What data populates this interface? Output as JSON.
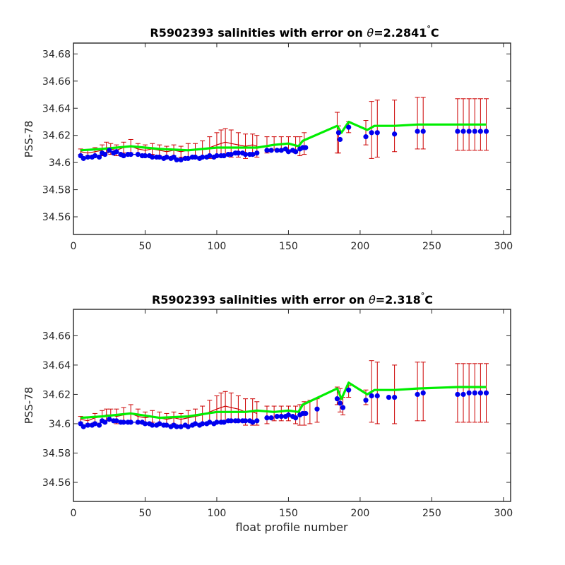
{
  "colors": {
    "errorbar": "#cc0000",
    "mapped": "#00ee00",
    "float": "#0000ee",
    "axis": "#262626"
  },
  "chart_data": [
    {
      "type": "scatter",
      "title_main": "R5902393 salinities with error on ",
      "title_theta": "θ",
      "title_value": "=2.2841",
      "title_unit": "C",
      "title_degree": "°",
      "xlabel": "",
      "ylabel": "PSS-78",
      "xlim": [
        0,
        305
      ],
      "ylim": [
        34.547,
        34.688
      ],
      "xticks": [
        0,
        50,
        100,
        150,
        200,
        250,
        300
      ],
      "xtick_labels": [
        "0",
        "50",
        "100",
        "150",
        "200",
        "250",
        "300"
      ],
      "yticks": [
        34.56,
        34.58,
        34.6,
        34.62,
        34.64,
        34.66,
        34.68
      ],
      "ytick_labels": [
        "34.56",
        "34.58",
        "34.6",
        "34.62",
        "34.64",
        "34.66",
        "34.68"
      ],
      "grid": false,
      "errorbar_series": {
        "x": [
          5,
          10,
          15,
          20,
          23,
          26,
          30,
          35,
          40,
          45,
          50,
          55,
          60,
          65,
          70,
          75,
          80,
          85,
          90,
          95,
          100,
          103,
          106,
          110,
          115,
          120,
          125,
          128,
          135,
          140,
          145,
          150,
          155,
          158,
          161,
          184,
          185,
          192,
          204,
          208,
          212,
          224,
          240,
          244,
          268,
          272,
          276,
          280,
          284,
          288
        ],
        "y": [
          34.608,
          34.607,
          34.608,
          34.609,
          34.611,
          34.61,
          34.609,
          34.611,
          34.612,
          34.61,
          34.609,
          34.61,
          34.609,
          34.608,
          34.609,
          34.608,
          34.609,
          34.609,
          34.61,
          34.611,
          34.613,
          34.614,
          34.615,
          34.614,
          34.613,
          34.612,
          34.613,
          34.612,
          34.613,
          34.614,
          34.614,
          34.614,
          34.613,
          34.612,
          34.614,
          34.622,
          34.617,
          34.626,
          34.622,
          34.624,
          34.625,
          34.627,
          34.629,
          34.629,
          34.628,
          34.628,
          34.628,
          34.628,
          34.628,
          34.628
        ],
        "err": [
          0.002,
          0.002,
          0.003,
          0.004,
          0.004,
          0.004,
          0.004,
          0.004,
          0.005,
          0.004,
          0.004,
          0.004,
          0.004,
          0.004,
          0.004,
          0.004,
          0.005,
          0.005,
          0.006,
          0.008,
          0.009,
          0.01,
          0.01,
          0.01,
          0.009,
          0.009,
          0.008,
          0.008,
          0.006,
          0.005,
          0.005,
          0.005,
          0.006,
          0.007,
          0.008,
          0.015,
          0.01,
          0.004,
          0.009,
          0.021,
          0.021,
          0.019,
          0.019,
          0.019,
          0.019,
          0.019,
          0.019,
          0.019,
          0.019,
          0.019
        ]
      },
      "mapped_series": {
        "x": [
          5,
          20,
          40,
          60,
          80,
          100,
          120,
          128,
          140,
          150,
          157,
          160,
          184,
          187,
          192,
          205,
          210,
          224,
          240,
          268,
          288
        ],
        "y": [
          34.609,
          34.61,
          34.612,
          34.61,
          34.609,
          34.611,
          34.611,
          34.611,
          34.613,
          34.614,
          34.612,
          34.616,
          34.627,
          34.622,
          34.63,
          34.624,
          34.627,
          34.627,
          34.628,
          34.628,
          34.628
        ]
      },
      "float_series": {
        "x": [
          5,
          7,
          10,
          13,
          15,
          18,
          20,
          22,
          25,
          28,
          30,
          33,
          35,
          38,
          40,
          45,
          48,
          50,
          53,
          55,
          58,
          60,
          63,
          65,
          68,
          70,
          72,
          75,
          78,
          80,
          83,
          85,
          88,
          90,
          93,
          95,
          98,
          100,
          103,
          105,
          108,
          110,
          113,
          115,
          118,
          120,
          123,
          125,
          128,
          135,
          138,
          142,
          145,
          148,
          150,
          153,
          155,
          158,
          160,
          162,
          185,
          186,
          192,
          204,
          208,
          212,
          224,
          240,
          244,
          268,
          272,
          276,
          280,
          284,
          288
        ],
        "y": [
          34.605,
          34.603,
          34.604,
          34.604,
          34.605,
          34.604,
          34.607,
          34.606,
          34.609,
          34.607,
          34.608,
          34.606,
          34.605,
          34.606,
          34.606,
          34.606,
          34.605,
          34.605,
          34.605,
          34.604,
          34.604,
          34.604,
          34.603,
          34.604,
          34.603,
          34.604,
          34.602,
          34.602,
          34.603,
          34.603,
          34.604,
          34.604,
          34.603,
          34.604,
          34.604,
          34.605,
          34.604,
          34.605,
          34.605,
          34.605,
          34.606,
          34.606,
          34.607,
          34.607,
          34.607,
          34.606,
          34.606,
          34.606,
          34.607,
          34.609,
          34.609,
          34.609,
          34.609,
          34.61,
          34.608,
          34.609,
          34.608,
          34.61,
          34.611,
          34.611,
          34.622,
          34.617,
          34.626,
          34.619,
          34.622,
          34.622,
          34.621,
          34.623,
          34.623,
          34.623,
          34.623,
          34.623,
          34.623,
          34.623,
          34.623
        ]
      }
    },
    {
      "type": "scatter",
      "title_main": "R5902393 salinities with error on ",
      "title_theta": "θ",
      "title_value": "=2.318",
      "title_unit": "C",
      "title_degree": "°",
      "xlabel": "float profile number",
      "ylabel": "PSS-78",
      "xlim": [
        0,
        305
      ],
      "ylim": [
        34.547,
        34.678
      ],
      "xticks": [
        0,
        50,
        100,
        150,
        200,
        250,
        300
      ],
      "xtick_labels": [
        "0",
        "50",
        "100",
        "150",
        "200",
        "250",
        "300"
      ],
      "yticks": [
        34.56,
        34.58,
        34.6,
        34.62,
        34.64,
        34.66
      ],
      "ytick_labels": [
        "34.56",
        "34.58",
        "34.6",
        "34.62",
        "34.64",
        "34.66"
      ],
      "grid": false,
      "errorbar_series": {
        "x": [
          5,
          10,
          15,
          20,
          23,
          26,
          30,
          35,
          40,
          45,
          50,
          55,
          60,
          65,
          70,
          75,
          80,
          85,
          90,
          95,
          100,
          103,
          106,
          110,
          115,
          120,
          125,
          128,
          135,
          140,
          145,
          150,
          155,
          158,
          161,
          165,
          170,
          184,
          186,
          188,
          192,
          204,
          208,
          212,
          224,
          240,
          244,
          268,
          272,
          276,
          280,
          284,
          288
        ],
        "y": [
          34.603,
          34.602,
          34.604,
          34.605,
          34.606,
          34.606,
          34.605,
          34.606,
          34.607,
          34.605,
          34.604,
          34.605,
          34.604,
          34.603,
          34.604,
          34.603,
          34.604,
          34.605,
          34.606,
          34.608,
          34.61,
          34.611,
          34.612,
          34.611,
          34.61,
          34.608,
          34.608,
          34.607,
          34.606,
          34.607,
          34.607,
          34.607,
          34.606,
          34.606,
          34.607,
          34.608,
          34.609,
          34.619,
          34.616,
          34.612,
          34.622,
          34.618,
          34.622,
          34.621,
          34.62,
          34.622,
          34.622,
          34.621,
          34.621,
          34.621,
          34.621,
          34.621,
          34.621
        ],
        "err": [
          0.002,
          0.002,
          0.003,
          0.004,
          0.004,
          0.004,
          0.005,
          0.005,
          0.006,
          0.005,
          0.004,
          0.004,
          0.004,
          0.004,
          0.004,
          0.004,
          0.005,
          0.005,
          0.006,
          0.008,
          0.009,
          0.01,
          0.01,
          0.01,
          0.009,
          0.009,
          0.009,
          0.008,
          0.006,
          0.005,
          0.005,
          0.005,
          0.006,
          0.007,
          0.008,
          0.008,
          0.008,
          0.006,
          0.008,
          0.006,
          0.004,
          0.005,
          0.021,
          0.021,
          0.02,
          0.02,
          0.02,
          0.02,
          0.02,
          0.02,
          0.02,
          0.02,
          0.02
        ]
      },
      "mapped_series": {
        "x": [
          5,
          20,
          40,
          60,
          80,
          100,
          120,
          128,
          140,
          150,
          157,
          160,
          184,
          187,
          192,
          205,
          210,
          224,
          240,
          268,
          288
        ],
        "y": [
          34.604,
          34.605,
          34.607,
          34.604,
          34.605,
          34.608,
          34.608,
          34.609,
          34.608,
          34.609,
          34.608,
          34.613,
          34.624,
          34.617,
          34.628,
          34.62,
          34.623,
          34.623,
          34.624,
          34.625,
          34.625
        ]
      },
      "float_series": {
        "x": [
          5,
          7,
          10,
          13,
          15,
          18,
          20,
          22,
          25,
          28,
          30,
          33,
          35,
          38,
          40,
          45,
          48,
          50,
          53,
          55,
          58,
          60,
          63,
          65,
          68,
          70,
          72,
          75,
          78,
          80,
          83,
          85,
          88,
          90,
          93,
          95,
          98,
          100,
          103,
          105,
          108,
          110,
          113,
          115,
          118,
          120,
          123,
          125,
          128,
          135,
          138,
          142,
          145,
          148,
          150,
          153,
          155,
          158,
          160,
          162,
          170,
          184,
          186,
          188,
          192,
          204,
          208,
          212,
          220,
          224,
          240,
          244,
          268,
          272,
          276,
          280,
          284,
          288
        ],
        "y": [
          34.6,
          34.598,
          34.599,
          34.599,
          34.6,
          34.599,
          34.602,
          34.601,
          34.603,
          34.602,
          34.602,
          34.601,
          34.601,
          34.601,
          34.601,
          34.601,
          34.601,
          34.6,
          34.6,
          34.599,
          34.599,
          34.6,
          34.599,
          34.599,
          34.598,
          34.599,
          34.598,
          34.598,
          34.599,
          34.598,
          34.599,
          34.6,
          34.599,
          34.6,
          34.6,
          34.601,
          34.6,
          34.601,
          34.601,
          34.601,
          34.602,
          34.602,
          34.602,
          34.602,
          34.602,
          34.602,
          34.602,
          34.601,
          34.602,
          34.604,
          34.604,
          34.605,
          34.605,
          34.605,
          34.606,
          34.605,
          34.604,
          34.606,
          34.607,
          34.607,
          34.61,
          34.617,
          34.614,
          34.611,
          34.623,
          34.616,
          34.619,
          34.619,
          34.618,
          34.618,
          34.62,
          34.621,
          34.62,
          34.62,
          34.621,
          34.621,
          34.621,
          34.621
        ]
      }
    }
  ]
}
